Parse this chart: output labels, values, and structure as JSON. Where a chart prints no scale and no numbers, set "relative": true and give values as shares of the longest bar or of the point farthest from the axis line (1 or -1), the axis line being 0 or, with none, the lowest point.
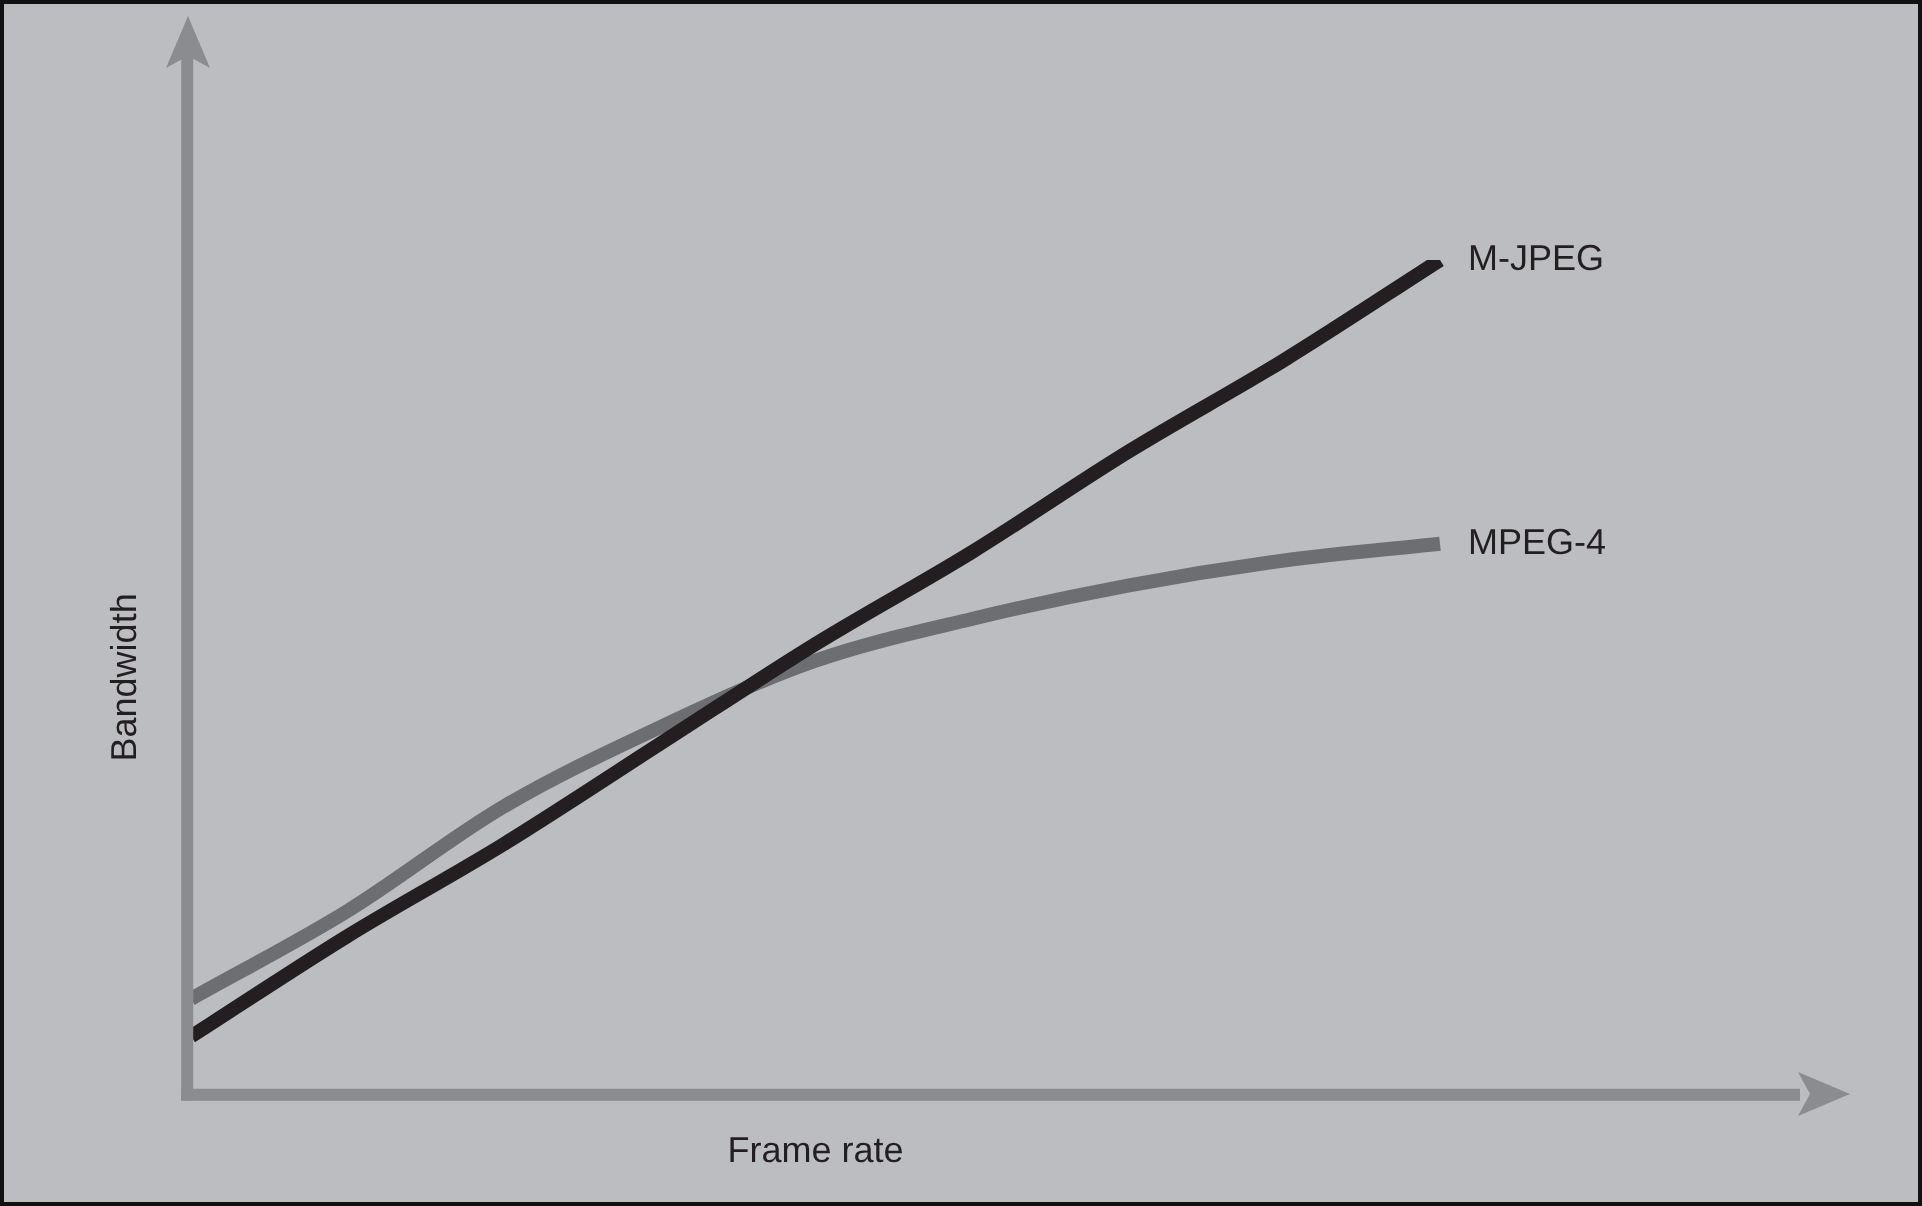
{
  "chart_data": {
    "type": "line",
    "relative": true,
    "xlabel": "Frame rate",
    "ylabel": "Bandwidth",
    "legend": false,
    "grid": false,
    "marker": "none",
    "line_style": "solid",
    "categories": [
      null,
      null,
      null,
      null,
      null,
      null,
      null,
      null,
      null
    ],
    "series": [
      {
        "name": "M-JPEG",
        "color": "#231f20",
        "values": [
          0.07,
          0.19,
          0.3,
          0.42,
          0.54,
          0.65,
          0.77,
          0.88,
          1
        ]
      },
      {
        "name": "MPEG-4",
        "color": "#6d6e71",
        "values": [
          0.115,
          0.22,
          0.345,
          0.44,
          0.52,
          0.57,
          0.61,
          0.64,
          0.66
        ]
      }
    ]
  }
}
